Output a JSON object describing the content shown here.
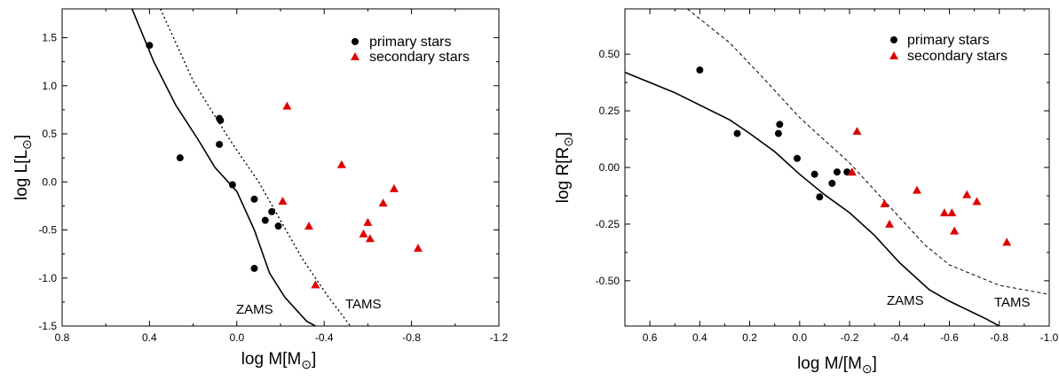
{
  "chart_data": [
    {
      "type": "scatter",
      "title": "",
      "xlabel": "log M[M",
      "ylabel": "log L[L",
      "xlim": [
        0.8,
        -1.2
      ],
      "ylim": [
        -1.5,
        1.8
      ],
      "x_ticks": [
        "0.8",
        "0.4",
        "0.0",
        "-0.4",
        "-0.8",
        "-1.2"
      ],
      "y_ticks": [
        "1.5",
        "1.0",
        "0.5",
        "0.0",
        "-0.5",
        "-1.0",
        "-1.5"
      ],
      "legend": [
        "primary stars",
        "secondary stars"
      ],
      "series": [
        {
          "name": "primary stars",
          "marker": "circle",
          "color": "#000000",
          "points": [
            [
              0.4,
              1.42
            ],
            [
              0.26,
              0.25
            ],
            [
              0.08,
              0.66
            ],
            [
              0.075,
              0.64
            ],
            [
              0.08,
              0.39
            ],
            [
              0.02,
              -0.03
            ],
            [
              -0.08,
              -0.18
            ],
            [
              -0.13,
              -0.4
            ],
            [
              -0.16,
              -0.31
            ],
            [
              -0.19,
              -0.46
            ],
            [
              -0.08,
              -0.9
            ]
          ]
        },
        {
          "name": "secondary stars",
          "marker": "triangle",
          "color": "#e00000",
          "points": [
            [
              -0.23,
              0.79
            ],
            [
              -0.48,
              0.18
            ],
            [
              -0.72,
              -0.07
            ],
            [
              -0.67,
              -0.22
            ],
            [
              -0.21,
              -0.2
            ],
            [
              -0.33,
              -0.46
            ],
            [
              -0.6,
              -0.42
            ],
            [
              -0.58,
              -0.54
            ],
            [
              -0.61,
              -0.59
            ],
            [
              -0.83,
              -0.69
            ],
            [
              -0.36,
              -1.07
            ]
          ]
        }
      ],
      "lines": [
        {
          "name": "ZAMS",
          "style": "solid",
          "points": [
            [
              0.48,
              1.8
            ],
            [
              0.38,
              1.25
            ],
            [
              0.28,
              0.8
            ],
            [
              0.18,
              0.45
            ],
            [
              0.1,
              0.15
            ],
            [
              0.0,
              -0.1
            ],
            [
              -0.08,
              -0.5
            ],
            [
              -0.15,
              -0.95
            ],
            [
              -0.22,
              -1.2
            ],
            [
              -0.32,
              -1.45
            ],
            [
              -0.36,
              -1.5
            ]
          ]
        },
        {
          "name": "TAMS",
          "style": "dotted",
          "points": [
            [
              0.35,
              1.8
            ],
            [
              0.2,
              1.05
            ],
            [
              0.05,
              0.5
            ],
            [
              0.0,
              0.33
            ],
            [
              -0.1,
              0.0
            ],
            [
              -0.2,
              -0.4
            ],
            [
              -0.3,
              -0.8
            ],
            [
              -0.42,
              -1.2
            ],
            [
              -0.52,
              -1.5
            ]
          ]
        }
      ],
      "annotations": [
        "ZAMS",
        "TAMS"
      ]
    },
    {
      "type": "scatter",
      "title": "",
      "xlabel": "log M/[M",
      "ylabel": "log R[R",
      "xlim": [
        0.7,
        -1.0
      ],
      "ylim": [
        -0.7,
        0.7
      ],
      "x_ticks": [
        "0.6",
        "0.4",
        "0.2",
        "0.0",
        "-0.2",
        "-0.4",
        "-0.6",
        "-0.8",
        "-1.0"
      ],
      "y_ticks": [
        "0.50",
        "0.25",
        "0.00",
        "-0.25",
        "-0.50"
      ],
      "legend": [
        "primary stars",
        "secondary stars"
      ],
      "series": [
        {
          "name": "primary stars",
          "marker": "circle",
          "color": "#000000",
          "points": [
            [
              0.4,
              0.43
            ],
            [
              0.25,
              0.15
            ],
            [
              0.08,
              0.19
            ],
            [
              0.085,
              0.15
            ],
            [
              0.01,
              0.04
            ],
            [
              -0.06,
              -0.03
            ],
            [
              -0.08,
              -0.13
            ],
            [
              -0.13,
              -0.07
            ],
            [
              -0.15,
              -0.02
            ],
            [
              -0.19,
              -0.02
            ]
          ]
        },
        {
          "name": "secondary stars",
          "marker": "triangle",
          "color": "#e00000",
          "points": [
            [
              -0.23,
              0.16
            ],
            [
              -0.21,
              -0.02
            ],
            [
              -0.34,
              -0.16
            ],
            [
              -0.36,
              -0.25
            ],
            [
              -0.47,
              -0.1
            ],
            [
              -0.58,
              -0.2
            ],
            [
              -0.61,
              -0.2
            ],
            [
              -0.62,
              -0.28
            ],
            [
              -0.67,
              -0.12
            ],
            [
              -0.71,
              -0.15
            ],
            [
              -0.83,
              -0.33
            ]
          ]
        }
      ],
      "lines": [
        {
          "name": "ZAMS",
          "style": "solid",
          "points": [
            [
              0.7,
              0.42
            ],
            [
              0.5,
              0.33
            ],
            [
              0.28,
              0.21
            ],
            [
              0.2,
              0.15
            ],
            [
              0.1,
              0.07
            ],
            [
              0.0,
              -0.03
            ],
            [
              -0.1,
              -0.12
            ],
            [
              -0.2,
              -0.2
            ],
            [
              -0.3,
              -0.3
            ],
            [
              -0.4,
              -0.42
            ],
            [
              -0.52,
              -0.54
            ],
            [
              -0.6,
              -0.59
            ],
            [
              -0.75,
              -0.67
            ],
            [
              -0.8,
              -0.7
            ]
          ]
        },
        {
          "name": "TAMS",
          "style": "dashed",
          "points": [
            [
              0.45,
              0.7
            ],
            [
              0.28,
              0.55
            ],
            [
              0.15,
              0.4
            ],
            [
              0.0,
              0.22
            ],
            [
              -0.1,
              0.12
            ],
            [
              -0.2,
              0.02
            ],
            [
              -0.3,
              -0.1
            ],
            [
              -0.4,
              -0.22
            ],
            [
              -0.5,
              -0.34
            ],
            [
              -0.6,
              -0.43
            ],
            [
              -0.8,
              -0.52
            ],
            [
              -1.0,
              -0.56
            ]
          ]
        }
      ],
      "annotations": [
        "ZAMS",
        "TAMS"
      ]
    }
  ],
  "sun_symbol": "⊙"
}
